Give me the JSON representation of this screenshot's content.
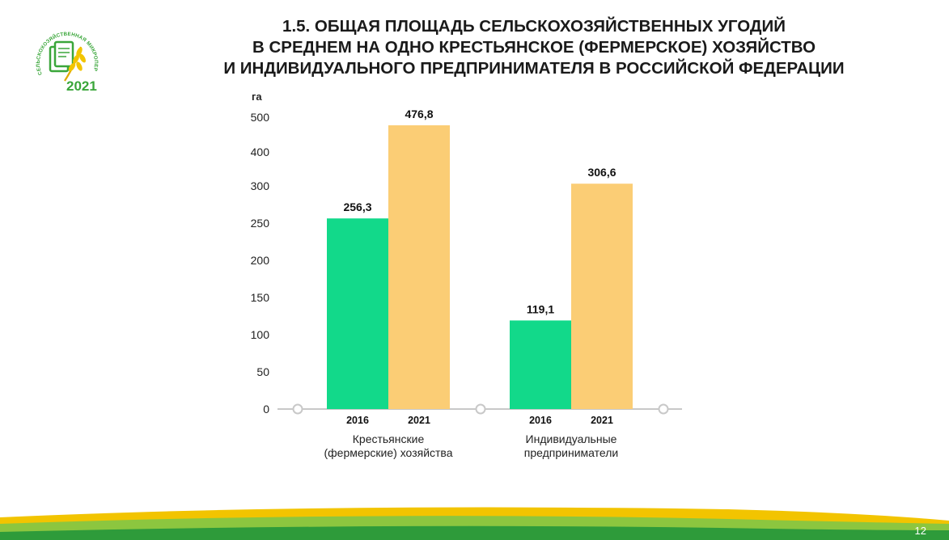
{
  "logo": {
    "ring_text": "СЕЛЬСКОХОЗЯЙСТВЕННАЯ МИКРОПЕРЕПИСЬ",
    "year": "2021"
  },
  "title_lines": [
    "1.5. ОБЩАЯ ПЛОЩАДЬ СЕЛЬСКОХОЗЯЙСТВЕННЫХ УГОДИЙ",
    "В СРЕДНЕМ НА ОДНО КРЕСТЬЯНСКОЕ (ФЕРМЕРСКОЕ) ХОЗЯЙСТВО",
    "И ИНДИВИДУАЛЬНОГО ПРЕДПРИНИМАТЕЛЯ В РОССИЙСКОЙ ФЕДЕРАЦИИ"
  ],
  "chart_data": {
    "type": "bar",
    "ylabel": "га",
    "yticks": [
      0,
      50,
      100,
      150,
      200,
      250,
      300,
      400,
      500
    ],
    "ytick_labels": [
      "0",
      "50",
      "100",
      "150",
      "200",
      "250",
      "300",
      "400",
      "500"
    ],
    "groups": [
      {
        "label_lines": [
          "Крестьянские",
          "(фермерские) хозяйства"
        ],
        "bars": [
          {
            "year": "2016",
            "value": 256.3,
            "label": "256,3"
          },
          {
            "year": "2021",
            "value": 476.8,
            "label": "476,8"
          }
        ]
      },
      {
        "label_lines": [
          "Индивидуальные",
          "предприниматели"
        ],
        "bars": [
          {
            "year": "2016",
            "value": 119.1,
            "label": "119,1"
          },
          {
            "year": "2021",
            "value": 306.6,
            "label": "306,6"
          }
        ]
      }
    ],
    "colors": {
      "2016": "#12d98a",
      "2021": "#fbcd75"
    },
    "grid": false,
    "legend": "none"
  },
  "page_number": "12",
  "colors": {
    "logo_green": "#3aa63a",
    "footer_green": "#4caf2f",
    "footer_yellow": "#f2c400",
    "axis": "#c8c8c8"
  }
}
